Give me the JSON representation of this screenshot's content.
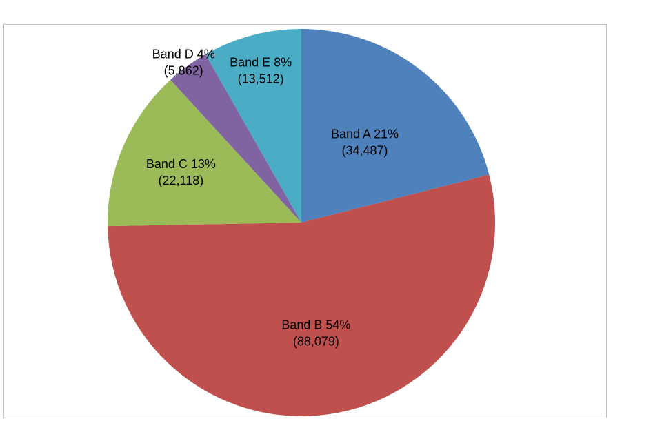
{
  "chart_data": {
    "type": "pie",
    "title": "",
    "start_angle_deg": 0,
    "direction": "clockwise",
    "slices": [
      {
        "name": "Band A",
        "percent_label": "21%",
        "count_label": "(34,487)",
        "value": 34487,
        "color": "#4f81bd"
      },
      {
        "name": "Band B",
        "percent_label": "54%",
        "count_label": "(88,079)",
        "value": 88079,
        "color": "#c0504d"
      },
      {
        "name": "Band C",
        "percent_label": "13%",
        "count_label": "(22,118)",
        "value": 22118,
        "color": "#9bbb59"
      },
      {
        "name": "Band D",
        "percent_label": "4%",
        "count_label": "(5,862)",
        "value": 5862,
        "color": "#8064a2"
      },
      {
        "name": "Band E",
        "percent_label": "8%",
        "count_label": "(13,512)",
        "value": 13512,
        "color": "#4bacc6"
      }
    ]
  }
}
